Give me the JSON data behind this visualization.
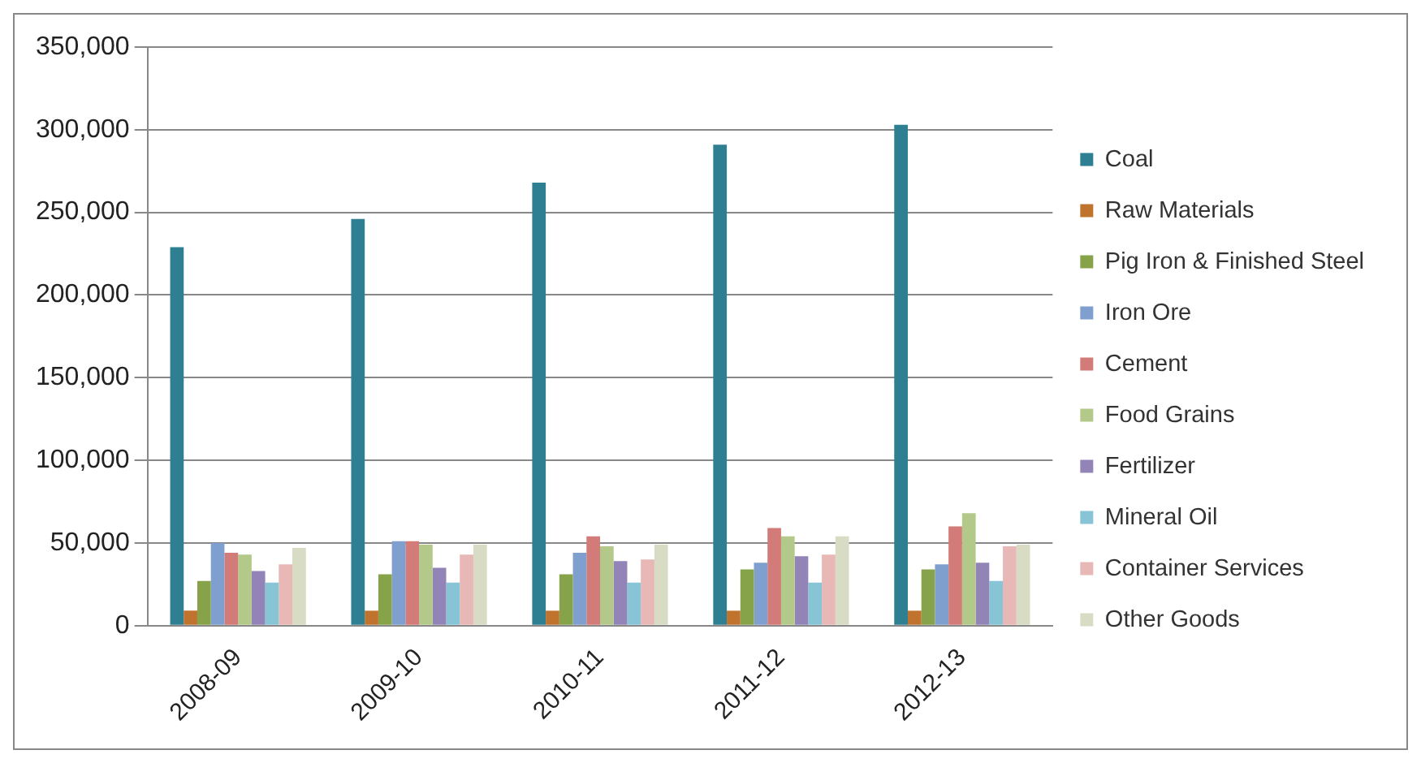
{
  "chart_data": {
    "type": "bar",
    "categories": [
      "2008-09",
      "2009-10",
      "2010-11",
      "2011-12",
      "2012-13"
    ],
    "series": [
      {
        "name": "Coal",
        "color": "#2f7f93",
        "values": [
          229000,
          246000,
          268000,
          291000,
          303000
        ]
      },
      {
        "name": "Raw Materials",
        "color": "#c0732d",
        "values": [
          9000,
          9000,
          9000,
          9000,
          9000
        ]
      },
      {
        "name": "Pig Iron & Finished Steel",
        "color": "#86a34a",
        "values": [
          27000,
          31000,
          31000,
          34000,
          34000
        ]
      },
      {
        "name": "Iron Ore",
        "color": "#7f9fcf",
        "values": [
          50000,
          51000,
          44000,
          38000,
          37000
        ]
      },
      {
        "name": "Cement",
        "color": "#d27b78",
        "values": [
          44000,
          51000,
          54000,
          59000,
          60000
        ]
      },
      {
        "name": "Food Grains",
        "color": "#b3c98a",
        "values": [
          43000,
          49000,
          48000,
          54000,
          68000
        ]
      },
      {
        "name": "Fertilizer",
        "color": "#9384b8",
        "values": [
          33000,
          35000,
          39000,
          42000,
          38000
        ]
      },
      {
        "name": "Mineral Oil",
        "color": "#87c4d6",
        "values": [
          26000,
          26000,
          26000,
          26000,
          27000
        ]
      },
      {
        "name": "Container Services",
        "color": "#e8b8b6",
        "values": [
          37000,
          43000,
          40000,
          43000,
          48000
        ]
      },
      {
        "name": "Other Goods",
        "color": "#d9dcc4",
        "values": [
          47000,
          49000,
          49000,
          54000,
          49000
        ]
      }
    ],
    "ylim": [
      0,
      350000
    ],
    "yticks": [
      0,
      {
        "value": 50000,
        "label": "50,000"
      },
      {
        "value": 100000,
        "label": "100,000"
      },
      {
        "value": 150000,
        "label": "150,000"
      },
      {
        "value": 200000,
        "label": "200,000"
      },
      {
        "value": 250000,
        "label": "250,000"
      },
      {
        "value": 300000,
        "label": "300,000"
      },
      {
        "value": 350000,
        "label": "350,000"
      }
    ],
    "grid": "y",
    "legend": "right"
  }
}
